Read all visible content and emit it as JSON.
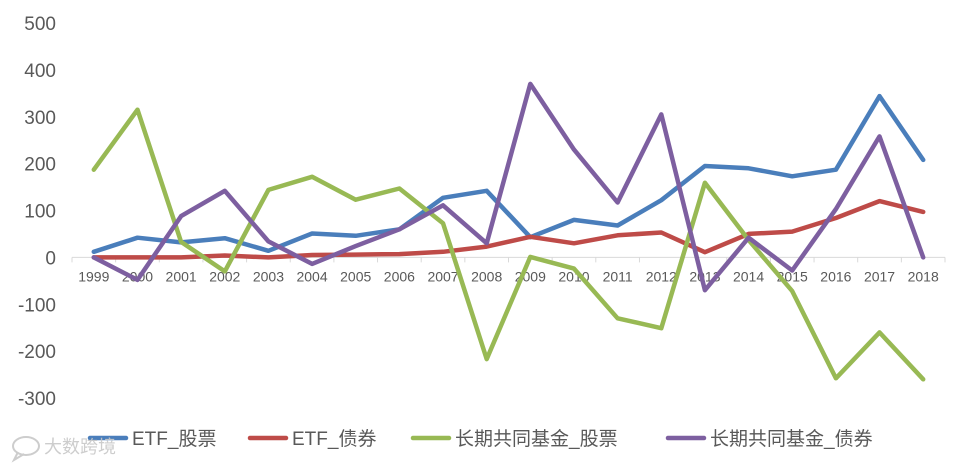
{
  "chart_data": {
    "type": "line",
    "categories": [
      "1999",
      "2000",
      "2001",
      "2002",
      "2003",
      "2004",
      "2005",
      "2006",
      "2007",
      "2008",
      "2009",
      "2010",
      "2011",
      "2012",
      "2013",
      "2014",
      "2015",
      "2016",
      "2017",
      "2018"
    ],
    "ylim": [
      -300,
      500
    ],
    "yticks": [
      500,
      400,
      300,
      200,
      100,
      0,
      -100,
      -200,
      -300
    ],
    "grid": false,
    "legend_position": "bottom",
    "series": [
      {
        "name": "ETF_股票",
        "color": "#4a7ebb",
        "values": [
          12,
          42,
          32,
          41,
          14,
          51,
          46,
          60,
          127,
          142,
          43,
          80,
          68,
          122,
          195,
          190,
          173,
          187,
          344,
          208
        ]
      },
      {
        "name": "ETF_债券",
        "color": "#be4b48",
        "values": [
          0,
          0,
          0,
          4,
          0,
          5,
          6,
          7,
          12,
          23,
          44,
          30,
          47,
          53,
          11,
          50,
          55,
          84,
          120,
          97
        ]
      },
      {
        "name": "长期共同基金_股票",
        "color": "#98b954",
        "values": [
          187,
          315,
          33,
          -30,
          144,
          172,
          123,
          147,
          73,
          -217,
          1,
          -24,
          -130,
          -151,
          159,
          37,
          -72,
          -258,
          -160,
          -260
        ]
      },
      {
        "name": "长期共同基金_债券",
        "color": "#7d5fa0",
        "values": [
          0,
          -48,
          88,
          142,
          34,
          -14,
          24,
          60,
          111,
          30,
          370,
          230,
          117,
          305,
          -70,
          42,
          -28,
          103,
          258,
          0
        ]
      }
    ]
  },
  "watermark": {
    "text": "大数跨境",
    "icon": "chat-bubble-icon"
  }
}
